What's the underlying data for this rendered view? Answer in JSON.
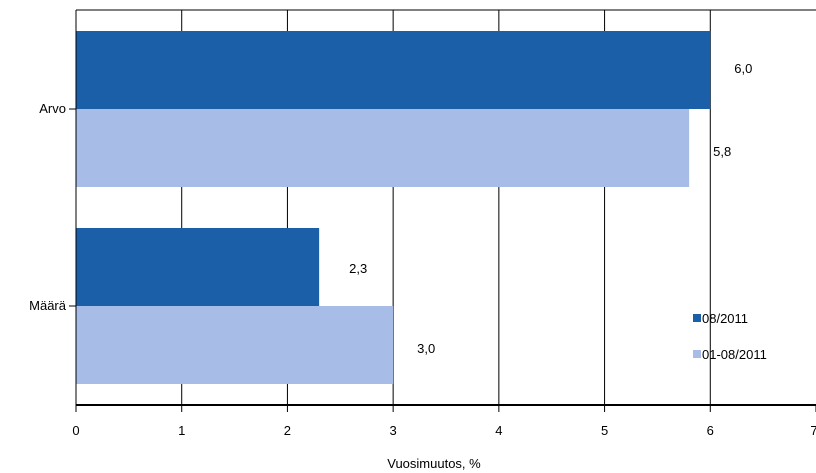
{
  "chart_data": {
    "type": "bar",
    "orientation": "horizontal",
    "categories": [
      "Arvo",
      "Määrä"
    ],
    "series": [
      {
        "name": "08/2011",
        "values": [
          6.0,
          2.3
        ],
        "labels": [
          "6,0",
          "2,3"
        ],
        "color": "#1a5fa8"
      },
      {
        "name": "01-08/2011",
        "values": [
          5.8,
          3.0
        ],
        "labels": [
          "5,8",
          "3,0"
        ],
        "color": "#a7bde8"
      }
    ],
    "xlabel": "Vuosimuutos, %",
    "xlim": [
      0,
      7
    ],
    "xticks": [
      "0",
      "1",
      "2",
      "3",
      "4",
      "5",
      "6",
      "7"
    ],
    "grid": "vertical",
    "legend_position": "bottom-right"
  }
}
